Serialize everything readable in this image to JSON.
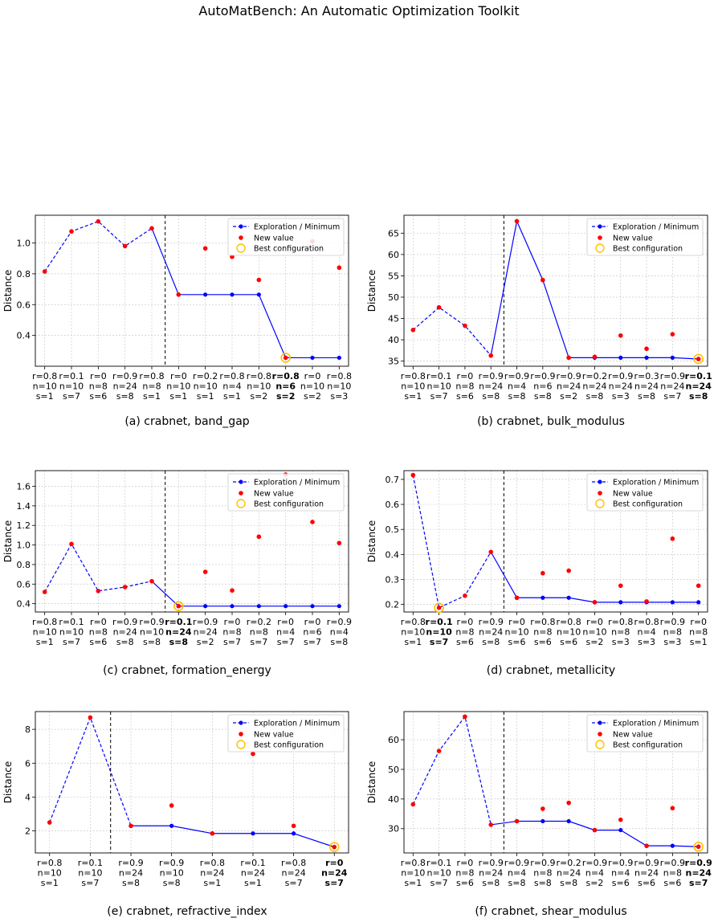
{
  "page": {
    "title": "AutoMatBench: An Automatic Optimization Toolkit"
  },
  "legend": {
    "exploration": "Exploration / Minimum",
    "new_value": "New value",
    "best": "Best configuration"
  },
  "colors": {
    "line": "#0000ff",
    "new_value": "#ff0000",
    "best_ring": "#ffc000",
    "split": "#000000",
    "grid": "#cccccc"
  },
  "chart_data": [
    {
      "type": "line",
      "caption": "(a) crabnet, band_gap",
      "ylabel": "Distance",
      "ylim": [
        0.2,
        1.18
      ],
      "yticks": [
        "0.4",
        "0.6",
        "0.8",
        "1.0"
      ],
      "split_after": 4.5,
      "x_labels": [
        [
          "r=0.8",
          "n=10",
          "s=1"
        ],
        [
          "r=0.1",
          "n=10",
          "s=7"
        ],
        [
          "r=0",
          "n=8",
          "s=6"
        ],
        [
          "r=0.9",
          "n=24",
          "s=8"
        ],
        [
          "r=0.8",
          "n=8",
          "s=1"
        ],
        [
          "r=0",
          "n=10",
          "s=1"
        ],
        [
          "r=0.2",
          "n=10",
          "s=1"
        ],
        [
          "r=0.8",
          "n=4",
          "s=1"
        ],
        [
          "r=0.8",
          "n=10",
          "s=2"
        ],
        [
          "r=0.8",
          "n=6",
          "s=2"
        ],
        [
          "r=0",
          "n=10",
          "s=2"
        ],
        [
          "r=0.8",
          "n=10",
          "s=3"
        ]
      ],
      "best_index": 9,
      "exploration": [
        0.815,
        1.075,
        1.14,
        0.98,
        1.095
      ],
      "minimum": [
        1.095,
        0.665,
        0.665,
        0.665,
        0.665,
        0.255,
        0.255,
        0.255
      ],
      "new_values": [
        0.815,
        1.075,
        1.14,
        0.98,
        1.095,
        0.665,
        0.965,
        0.91,
        0.76,
        0.255,
        1.01,
        0.84
      ]
    },
    {
      "type": "line",
      "caption": "(b) crabnet, bulk_modulus",
      "ylabel": "Distance",
      "ylim": [
        33.8,
        69.2
      ],
      "yticks": [
        "35",
        "40",
        "45",
        "50",
        "55",
        "60",
        "65"
      ],
      "split_after": 3.5,
      "x_labels": [
        [
          "r=0.8",
          "n=10",
          "s=1"
        ],
        [
          "r=0.1",
          "n=10",
          "s=7"
        ],
        [
          "r=0",
          "n=8",
          "s=6"
        ],
        [
          "r=0.9",
          "n=24",
          "s=8"
        ],
        [
          "r=0.9",
          "n=4",
          "s=8"
        ],
        [
          "r=0.9",
          "n=6",
          "s=8"
        ],
        [
          "r=0.9",
          "n=24",
          "s=2"
        ],
        [
          "r=0.2",
          "n=24",
          "s=8"
        ],
        [
          "r=0.9",
          "n=24",
          "s=3"
        ],
        [
          "r=0.3",
          "n=24",
          "s=8"
        ],
        [
          "r=0.9",
          "n=24",
          "s=7"
        ],
        [
          "r=0.1",
          "n=24",
          "s=8"
        ]
      ],
      "best_index": 11,
      "exploration": [
        42.3,
        47.6,
        43.3,
        36.3
      ],
      "minimum": [
        36.3,
        67.8,
        54.0,
        35.8,
        35.8,
        35.8,
        35.8,
        35.8,
        35.5
      ],
      "new_values": [
        42.3,
        47.6,
        43.3,
        36.3,
        67.8,
        54.0,
        35.8,
        36.0,
        41.0,
        37.9,
        41.3,
        35.5
      ]
    },
    {
      "type": "line",
      "caption": "(c) crabnet, formation_energy",
      "ylabel": "Distance",
      "ylim": [
        0.315,
        1.76
      ],
      "yticks": [
        "0.4",
        "0.6",
        "0.8",
        "1.0",
        "1.2",
        "1.4",
        "1.6"
      ],
      "split_after": 4.5,
      "x_labels": [
        [
          "r=0.8",
          "n=10",
          "s=1"
        ],
        [
          "r=0.1",
          "n=10",
          "s=7"
        ],
        [
          "r=0",
          "n=8",
          "s=6"
        ],
        [
          "r=0.9",
          "n=24",
          "s=8"
        ],
        [
          "r=0.9",
          "n=10",
          "s=8"
        ],
        [
          "r=0.1",
          "n=24",
          "s=8"
        ],
        [
          "r=0.9",
          "n=24",
          "s=2"
        ],
        [
          "r=0",
          "n=8",
          "s=7"
        ],
        [
          "r=0.2",
          "n=8",
          "s=7"
        ],
        [
          "r=0",
          "n=4",
          "s=7"
        ],
        [
          "r=0",
          "n=6",
          "s=7"
        ],
        [
          "r=0.9",
          "n=4",
          "s=8"
        ]
      ],
      "best_index": 5,
      "exploration": [
        0.52,
        1.01,
        0.53,
        0.57,
        0.63
      ],
      "minimum": [
        0.63,
        0.375,
        0.375,
        0.375,
        0.375,
        0.375,
        0.375,
        0.375
      ],
      "new_values": [
        0.52,
        1.01,
        0.53,
        0.57,
        0.63,
        0.375,
        0.725,
        0.535,
        1.085,
        1.72,
        1.235,
        1.02
      ]
    },
    {
      "type": "line",
      "caption": "(d) crabnet, metallicity",
      "ylabel": "Distance",
      "ylim": [
        0.17,
        0.735
      ],
      "yticks": [
        "0.2",
        "0.3",
        "0.4",
        "0.5",
        "0.6",
        "0.7"
      ],
      "split_after": 3.5,
      "x_labels": [
        [
          "r=0.8",
          "n=10",
          "s=1"
        ],
        [
          "r=0.1",
          "n=10",
          "s=7"
        ],
        [
          "r=0",
          "n=8",
          "s=6"
        ],
        [
          "r=0.9",
          "n=24",
          "s=8"
        ],
        [
          "r=0",
          "n=10",
          "s=6"
        ],
        [
          "r=0.8",
          "n=8",
          "s=6"
        ],
        [
          "r=0.8",
          "n=10",
          "s=6"
        ],
        [
          "r=0",
          "n=10",
          "s=2"
        ],
        [
          "r=0.8",
          "n=8",
          "s=3"
        ],
        [
          "r=0.8",
          "n=4",
          "s=3"
        ],
        [
          "r=0.9",
          "n=8",
          "s=3"
        ],
        [
          "r=0",
          "n=8",
          "s=1"
        ]
      ],
      "best_index": 1,
      "exploration": [
        0.717,
        0.187,
        0.235,
        0.41
      ],
      "minimum": [
        0.41,
        0.227,
        0.227,
        0.227,
        0.209,
        0.209,
        0.209,
        0.209,
        0.209
      ],
      "new_values": [
        0.717,
        0.187,
        0.235,
        0.41,
        0.227,
        0.325,
        0.335,
        0.209,
        0.275,
        0.212,
        0.463,
        0.275
      ]
    },
    {
      "type": "line",
      "caption": "(e) crabnet, refractive_index",
      "ylabel": "Distance",
      "ylim": [
        0.7,
        9.05
      ],
      "yticks": [
        "2",
        "4",
        "6",
        "8"
      ],
      "split_after": 1.5,
      "x_labels": [
        [
          "r=0.8",
          "n=10",
          "s=1"
        ],
        [
          "r=0.1",
          "n=10",
          "s=7"
        ],
        [
          "r=0.9",
          "n=24",
          "s=8"
        ],
        [
          "r=0.9",
          "n=10",
          "s=8"
        ],
        [
          "r=0.8",
          "n=24",
          "s=1"
        ],
        [
          "r=0.1",
          "n=24",
          "s=1"
        ],
        [
          "r=0.8",
          "n=24",
          "s=7"
        ],
        [
          "r=0",
          "n=24",
          "s=7"
        ]
      ],
      "best_index": 7,
      "exploration": [
        2.5,
        8.7,
        2.3
      ],
      "minimum": [
        2.3,
        2.3,
        1.85,
        1.85,
        1.85,
        1.05
      ],
      "new_values": [
        2.5,
        8.7,
        2.3,
        3.5,
        1.85,
        6.55,
        2.3,
        1.05
      ]
    },
    {
      "type": "line",
      "caption": "(f) crabnet, shear_modulus",
      "ylabel": "Distance",
      "ylim": [
        21.8,
        69.5
      ],
      "yticks": [
        "30",
        "40",
        "50",
        "60"
      ],
      "split_after": 3.5,
      "x_labels": [
        [
          "r=0.8",
          "n=10",
          "s=1"
        ],
        [
          "r=0.1",
          "n=10",
          "s=7"
        ],
        [
          "r=0",
          "n=8",
          "s=6"
        ],
        [
          "r=0.9",
          "n=24",
          "s=8"
        ],
        [
          "r=0.9",
          "n=4",
          "s=8"
        ],
        [
          "r=0.9",
          "n=8",
          "s=8"
        ],
        [
          "r=0.2",
          "n=24",
          "s=8"
        ],
        [
          "r=0.9",
          "n=4",
          "s=2"
        ],
        [
          "r=0.9",
          "n=4",
          "s=6"
        ],
        [
          "r=0.9",
          "n=24",
          "s=6"
        ],
        [
          "r=0.9",
          "n=8",
          "s=6"
        ],
        [
          "r=0.9",
          "n=24",
          "s=7"
        ]
      ],
      "best_index": 11,
      "exploration": [
        38.2,
        56.2,
        67.8,
        31.3
      ],
      "minimum": [
        31.3,
        32.5,
        32.5,
        32.5,
        29.5,
        29.5,
        24.2,
        24.2,
        23.9
      ],
      "new_values": [
        38.2,
        56.2,
        67.8,
        31.3,
        32.5,
        36.7,
        38.7,
        29.5,
        33.0,
        24.2,
        36.9,
        23.9
      ]
    }
  ]
}
